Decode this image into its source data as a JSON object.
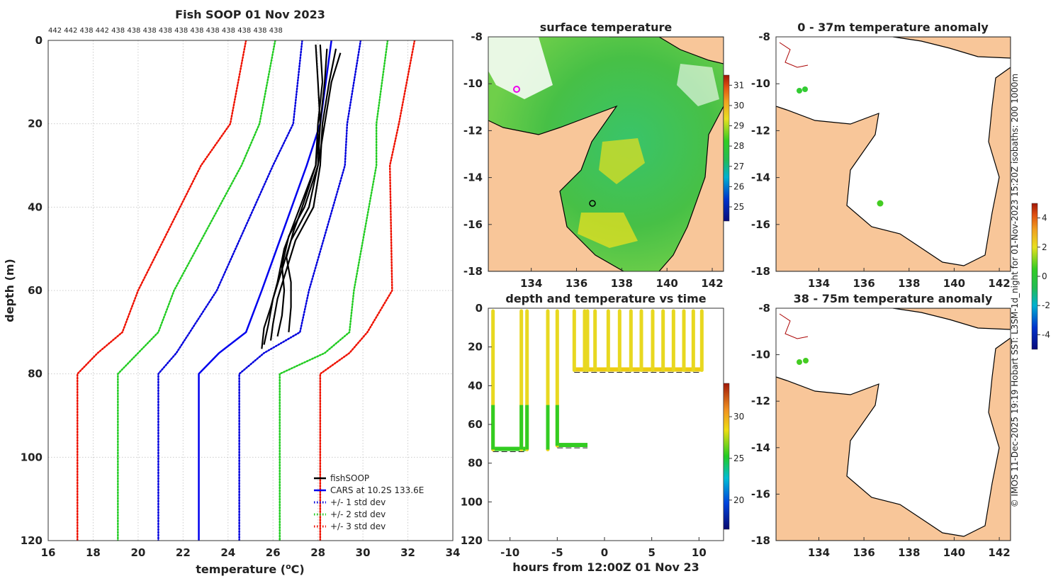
{
  "profile_chart": {
    "title": "Fish SOOP 01 Nov 2023",
    "top_counts": "442 442 438 442 438 438 438 438 438 438 438 438 438 438 438",
    "xlabel": "temperature (",
    "xlabel_unit": "o",
    "xlabel_end": "C)",
    "ylabel": "depth (m)",
    "xlim": [
      16,
      34
    ],
    "ylim": [
      120,
      0
    ],
    "x_ticks": [
      "16",
      "18",
      "20",
      "22",
      "24",
      "26",
      "28",
      "30",
      "32",
      "34"
    ],
    "y_ticks": [
      "0",
      "20",
      "40",
      "60",
      "80",
      "100",
      "120"
    ],
    "legend": [
      "fishSOOP",
      "CARS at 10.2S 133.6E",
      "+/- 1 std dev",
      "+/- 2 std dev",
      "+/- 3 std dev"
    ],
    "colors": {
      "fish": "#000000",
      "cars": "#0000ee",
      "sd1": "#0000dd",
      "sd2": "#22cc22",
      "sd3": "#ee1100"
    },
    "depth": [
      0,
      20,
      30,
      60,
      70,
      75,
      80,
      120
    ],
    "cars_mean": [
      28.6,
      28.1,
      27.5,
      25.5,
      24.8,
      23.6,
      22.7,
      22.7
    ],
    "cars_plus1": [
      29.9,
      29.3,
      29.2,
      27.6,
      27.2,
      25.6,
      24.5,
      24.5
    ],
    "cars_minus1": [
      27.3,
      26.9,
      26.0,
      23.5,
      22.3,
      21.7,
      20.9,
      20.9
    ],
    "cars_plus2": [
      31.1,
      30.6,
      30.6,
      29.6,
      29.4,
      28.3,
      26.3,
      26.3
    ],
    "cars_minus2": [
      26.1,
      25.4,
      24.6,
      21.6,
      20.9,
      20.0,
      19.1,
      19.1
    ],
    "cars_plus3": [
      32.3,
      31.6,
      31.2,
      31.3,
      30.2,
      29.4,
      28.1,
      28.1
    ],
    "cars_minus3": [
      24.8,
      24.1,
      22.8,
      20.0,
      19.3,
      18.2,
      17.3,
      17.3
    ],
    "fish_profiles": [
      {
        "t": [
          28.1,
          28.2,
          28.0,
          27.9,
          27.2,
          26.5,
          26.2,
          25.9,
          25.6,
          25.5
        ],
        "d": [
          1,
          10,
          20,
          30,
          40,
          50,
          58,
          64,
          69,
          74
        ]
      },
      {
        "t": [
          28.4,
          28.3,
          28.1,
          28.0,
          27.6,
          26.8,
          26.4,
          26.0,
          25.8,
          25.6
        ],
        "d": [
          2,
          10,
          20,
          30,
          40,
          48,
          55,
          62,
          68,
          73
        ]
      },
      {
        "t": [
          28.8,
          28.5,
          28.2,
          28.1,
          27.8,
          27.0,
          26.6,
          26.2,
          26.0,
          25.9
        ],
        "d": [
          2,
          10,
          20,
          30,
          40,
          48,
          55,
          62,
          68,
          72
        ]
      },
      {
        "t": [
          29.0,
          28.6,
          28.3,
          28.0,
          27.4,
          26.7,
          26.4,
          26.5,
          26.4,
          26.2
        ],
        "d": [
          3,
          10,
          20,
          30,
          40,
          47,
          54,
          60,
          66,
          71
        ]
      },
      {
        "t": [
          27.9,
          28.0,
          28.1,
          27.9,
          27.3,
          26.9,
          26.6,
          26.8,
          26.8,
          26.7
        ],
        "d": [
          1,
          10,
          20,
          30,
          40,
          46,
          52,
          58,
          64,
          70
        ]
      }
    ]
  },
  "sst_map": {
    "title": "surface temperature",
    "lon_ticks": [
      "134",
      "136",
      "138",
      "140",
      "142"
    ],
    "lat_ticks": [
      "-8",
      "-10",
      "-12",
      "-14",
      "-16",
      "-18"
    ],
    "colorbar_ticks": [
      "31",
      "30",
      "29",
      "28",
      "27",
      "26",
      "25"
    ]
  },
  "time_chart": {
    "title": "depth and temperature vs time",
    "xlabel": "hours from 12:00Z 01 Nov 23",
    "x_ticks": [
      "-10",
      "-5",
      "0",
      "5",
      "10"
    ],
    "y_ticks": [
      "0",
      "20",
      "40",
      "60",
      "80",
      "100",
      "120"
    ],
    "colorbar_ticks": [
      "30",
      "25",
      "20"
    ],
    "xlim": [
      -12.3,
      12.6
    ],
    "ylim": [
      120,
      0
    ],
    "segments": [
      {
        "x_start": -11.8,
        "x_end": -8.2,
        "bottom_depth": 73
      },
      {
        "x_start": -5.0,
        "x_end": -1.8,
        "bottom_depth": 71
      },
      {
        "x_start": -3.2,
        "x_end": 10.3,
        "bottom_depth": 32
      }
    ],
    "casts": [
      -11.8,
      -8.8,
      -8.2,
      -6.0,
      -5.0,
      -1.8,
      -3.2,
      -2.1,
      -1.0,
      0.4,
      1.6,
      2.8,
      3.9,
      5.1,
      6.2,
      7.3,
      8.4,
      9.4,
      10.3
    ]
  },
  "anom_map_1": {
    "title": "0 - 37m temperature anomaly",
    "lon_ticks": [
      "134",
      "136",
      "138",
      "140",
      "142"
    ],
    "lat_ticks": [
      "-8",
      "-10",
      "-12",
      "-14",
      "-16",
      "-18"
    ],
    "colorbar_ticks": [
      "4",
      "2",
      "0",
      "-2",
      "-4"
    ]
  },
  "anom_map_2": {
    "title": "38 - 75m temperature anomaly",
    "lon_ticks": [
      "134",
      "136",
      "138",
      "140",
      "142"
    ],
    "lat_ticks": [
      "-8",
      "-10",
      "-12",
      "-14",
      "-16",
      "-18"
    ]
  },
  "credit": "© IMOS 11-Dec-2025 19:19 Hobart SST: L3SM-1d_night for 01-Nov-2023 15:20Z isobaths: 200  1000m",
  "chart_data": [
    {
      "type": "line",
      "title": "Fish SOOP 01 Nov 2023",
      "xlabel": "temperature (oC)",
      "ylabel": "depth (m)",
      "xlim": [
        16,
        34
      ],
      "ylim": [
        120,
        0
      ],
      "series": [
        {
          "name": "CARS at 10.2S 133.6E",
          "depth": [
            0,
            20,
            30,
            60,
            70,
            75,
            80,
            120
          ],
          "values": [
            28.6,
            28.1,
            27.5,
            25.5,
            24.8,
            23.6,
            22.7,
            22.7
          ]
        },
        {
          "name": "+/- 1 std dev (upper)",
          "values": [
            29.9,
            29.3,
            29.2,
            27.6,
            27.2,
            25.6,
            24.5,
            24.5
          ]
        },
        {
          "name": "+/- 1 std dev (lower)",
          "values": [
            27.3,
            26.9,
            26.0,
            23.5,
            22.3,
            21.7,
            20.9,
            20.9
          ]
        },
        {
          "name": "+/- 2 std dev (upper)",
          "values": [
            31.1,
            30.6,
            30.6,
            29.6,
            29.4,
            28.3,
            26.3,
            26.3
          ]
        },
        {
          "name": "+/- 2 std dev (lower)",
          "values": [
            26.1,
            25.4,
            24.6,
            21.6,
            20.9,
            20.0,
            19.1,
            19.1
          ]
        },
        {
          "name": "+/- 3 std dev (upper)",
          "values": [
            32.3,
            31.6,
            31.2,
            31.3,
            30.2,
            29.4,
            28.1,
            28.1
          ]
        },
        {
          "name": "+/- 3 std dev (lower)",
          "values": [
            24.8,
            24.1,
            22.8,
            20.0,
            19.3,
            18.2,
            17.3,
            17.3
          ]
        }
      ]
    },
    {
      "type": "scatter",
      "title": "depth and temperature vs time",
      "xlabel": "hours from 12:00Z 01 Nov 23",
      "xlim": [
        -12.3,
        12.6
      ],
      "ylim": [
        120,
        0
      ]
    }
  ]
}
